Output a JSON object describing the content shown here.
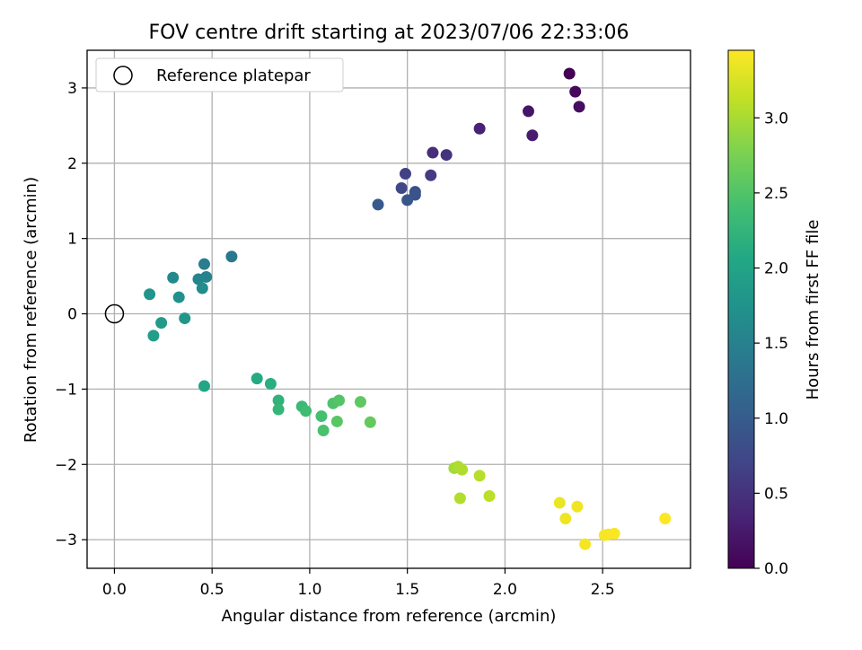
{
  "chart_data": {
    "type": "scatter",
    "title": "FOV centre drift starting at 2023/07/06 22:33:06",
    "xlabel": "Angular distance from reference (arcmin)",
    "ylabel": "Rotation from reference (arcmin)",
    "xlim": [
      -0.14,
      2.95
    ],
    "ylim": [
      -3.38,
      3.5
    ],
    "xticks": [
      0.0,
      0.5,
      1.0,
      1.5,
      2.0,
      2.5
    ],
    "xtick_labels": [
      "0.0",
      "0.5",
      "1.0",
      "1.5",
      "2.0",
      "2.5"
    ],
    "yticks": [
      -3,
      -2,
      -1,
      0,
      1,
      2,
      3
    ],
    "ytick_labels": [
      "−3",
      "−2",
      "−1",
      "0",
      "1",
      "2",
      "3"
    ],
    "grid": true,
    "legend": {
      "position": "top-left",
      "entries": [
        "Reference platepar"
      ]
    },
    "colormap": "viridis",
    "colorbar": {
      "label": "Hours from first FF file",
      "range": [
        0.0,
        3.45
      ],
      "ticks": [
        0.0,
        0.5,
        1.0,
        1.5,
        2.0,
        2.5,
        3.0
      ],
      "tick_labels": [
        "0.0",
        "0.5",
        "1.0",
        "1.5",
        "2.0",
        "2.5",
        "3.0"
      ]
    },
    "reference_point": {
      "x": 0.0,
      "y": 0.0,
      "label": "Reference platepar"
    },
    "points": [
      {
        "x": 2.33,
        "y": 3.19,
        "c": 0.0
      },
      {
        "x": 2.36,
        "y": 2.95,
        "c": 0.07
      },
      {
        "x": 2.38,
        "y": 2.75,
        "c": 0.13
      },
      {
        "x": 2.12,
        "y": 2.69,
        "c": 0.2
      },
      {
        "x": 2.14,
        "y": 2.37,
        "c": 0.27
      },
      {
        "x": 1.87,
        "y": 2.46,
        "c": 0.33
      },
      {
        "x": 1.63,
        "y": 2.14,
        "c": 0.45
      },
      {
        "x": 1.7,
        "y": 2.11,
        "c": 0.52
      },
      {
        "x": 1.62,
        "y": 1.84,
        "c": 0.6
      },
      {
        "x": 1.49,
        "y": 1.86,
        "c": 0.67
      },
      {
        "x": 1.47,
        "y": 1.67,
        "c": 0.75
      },
      {
        "x": 1.54,
        "y": 1.62,
        "c": 0.82
      },
      {
        "x": 1.54,
        "y": 1.58,
        "c": 0.88
      },
      {
        "x": 1.5,
        "y": 1.51,
        "c": 0.92
      },
      {
        "x": 1.35,
        "y": 1.45,
        "c": 0.97
      },
      {
        "x": 0.6,
        "y": 0.76,
        "c": 1.38
      },
      {
        "x": 0.46,
        "y": 0.66,
        "c": 1.45
      },
      {
        "x": 0.47,
        "y": 0.49,
        "c": 1.52
      },
      {
        "x": 0.43,
        "y": 0.46,
        "c": 1.56
      },
      {
        "x": 0.3,
        "y": 0.48,
        "c": 1.62
      },
      {
        "x": 0.45,
        "y": 0.34,
        "c": 1.66
      },
      {
        "x": 0.33,
        "y": 0.22,
        "c": 1.72
      },
      {
        "x": 0.18,
        "y": 0.26,
        "c": 1.78
      },
      {
        "x": 0.36,
        "y": -0.06,
        "c": 1.82
      },
      {
        "x": 0.24,
        "y": -0.12,
        "c": 1.86
      },
      {
        "x": 0.2,
        "y": -0.29,
        "c": 1.9
      },
      {
        "x": 0.46,
        "y": -0.96,
        "c": 2.02
      },
      {
        "x": 0.73,
        "y": -0.86,
        "c": 2.1
      },
      {
        "x": 0.8,
        "y": -0.93,
        "c": 2.16
      },
      {
        "x": 0.84,
        "y": -1.15,
        "c": 2.22
      },
      {
        "x": 0.84,
        "y": -1.27,
        "c": 2.27
      },
      {
        "x": 0.96,
        "y": -1.23,
        "c": 2.32
      },
      {
        "x": 0.98,
        "y": -1.29,
        "c": 2.36
      },
      {
        "x": 1.06,
        "y": -1.36,
        "c": 2.41
      },
      {
        "x": 1.07,
        "y": -1.55,
        "c": 2.45
      },
      {
        "x": 1.12,
        "y": -1.19,
        "c": 2.48
      },
      {
        "x": 1.15,
        "y": -1.15,
        "c": 2.52
      },
      {
        "x": 1.14,
        "y": -1.43,
        "c": 2.55
      },
      {
        "x": 1.26,
        "y": -1.17,
        "c": 2.58
      },
      {
        "x": 1.31,
        "y": -1.44,
        "c": 2.62
      },
      {
        "x": 1.74,
        "y": -2.05,
        "c": 2.98
      },
      {
        "x": 1.76,
        "y": -2.03,
        "c": 3.02
      },
      {
        "x": 1.78,
        "y": -2.07,
        "c": 3.04
      },
      {
        "x": 1.87,
        "y": -2.15,
        "c": 3.07
      },
      {
        "x": 1.77,
        "y": -2.45,
        "c": 3.05
      },
      {
        "x": 1.92,
        "y": -2.42,
        "c": 3.1
      },
      {
        "x": 2.28,
        "y": -2.51,
        "c": 3.35
      },
      {
        "x": 2.31,
        "y": -2.72,
        "c": 3.37
      },
      {
        "x": 2.37,
        "y": -2.56,
        "c": 3.38
      },
      {
        "x": 2.41,
        "y": -3.06,
        "c": 3.4
      },
      {
        "x": 2.51,
        "y": -2.94,
        "c": 3.41
      },
      {
        "x": 2.53,
        "y": -2.93,
        "c": 3.42
      },
      {
        "x": 2.56,
        "y": -2.92,
        "c": 3.43
      },
      {
        "x": 2.82,
        "y": -2.72,
        "c": 3.45
      }
    ]
  }
}
